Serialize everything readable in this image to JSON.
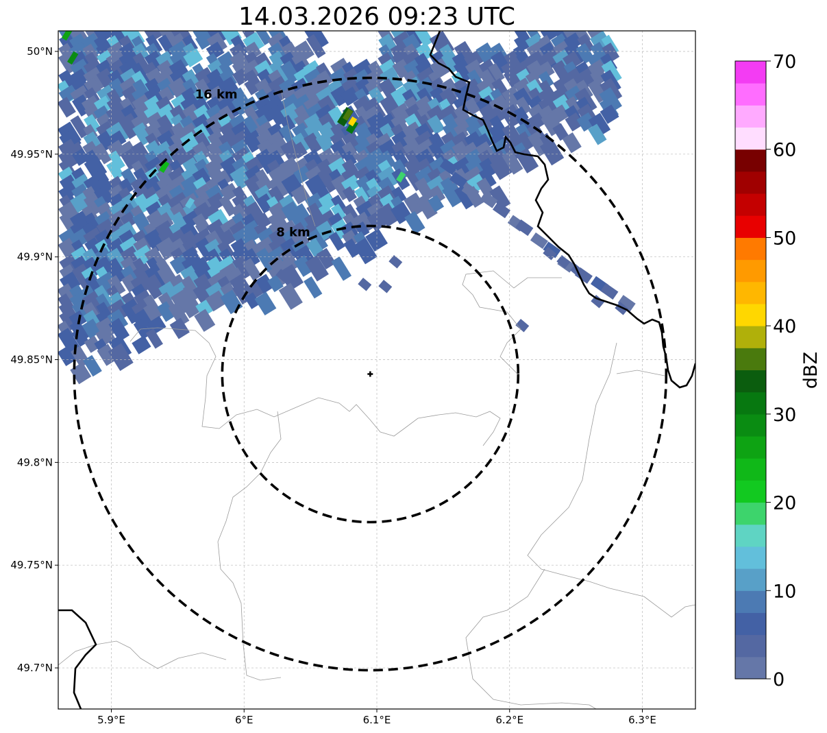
{
  "title": "14.03.2026 09:23 UTC",
  "axes": {
    "lon_range": [
      5.86,
      6.34
    ],
    "lat_range": [
      49.68,
      50.01
    ],
    "x_ticks": [
      {
        "value": 5.9,
        "label": "5.9°E"
      },
      {
        "value": 6.0,
        "label": "6°E"
      },
      {
        "value": 6.1,
        "label": "6.1°E"
      },
      {
        "value": 6.2,
        "label": "6.2°E"
      },
      {
        "value": 6.3,
        "label": "6.3°E"
      }
    ],
    "y_ticks": [
      {
        "value": 50.0,
        "label": "50°N"
      },
      {
        "value": 49.95,
        "label": "49.95°N"
      },
      {
        "value": 49.9,
        "label": "49.9°N"
      },
      {
        "value": 49.85,
        "label": "49.85°N"
      },
      {
        "value": 49.8,
        "label": "49.8°N"
      },
      {
        "value": 49.75,
        "label": "49.75°N"
      },
      {
        "value": 49.7,
        "label": "49.7°N"
      }
    ],
    "grid": true
  },
  "radar": {
    "center": {
      "lon": 6.095,
      "lat": 49.843
    },
    "rings": [
      {
        "radius_km": 8,
        "label": "8 km"
      },
      {
        "radius_km": 16,
        "label": "16 km"
      }
    ]
  },
  "colorbar": {
    "label": "dBZ",
    "min": 0,
    "max": 70,
    "ticks": [
      {
        "value": 0,
        "label": "0"
      },
      {
        "value": 10,
        "label": "10"
      },
      {
        "value": 20,
        "label": "20"
      },
      {
        "value": 30,
        "label": "30"
      },
      {
        "value": 40,
        "label": "40"
      },
      {
        "value": 50,
        "label": "50"
      },
      {
        "value": 60,
        "label": "60"
      },
      {
        "value": 70,
        "label": "70"
      }
    ],
    "colors": [
      "#6577a8",
      "#5468a2",
      "#4361a5",
      "#4c7ab3",
      "#58a0c8",
      "#62bfdb",
      "#5fd4c3",
      "#3dd46c",
      "#12c920",
      "#10b818",
      "#0ea313",
      "#0a8c12",
      "#077810",
      "#0b5d0e",
      "#4a7a0d",
      "#b0b00a",
      "#ffd700",
      "#ffb700",
      "#ff9a00",
      "#ff7a00",
      "#e80000",
      "#c40000",
      "#a00000",
      "#780000",
      "#ffddff",
      "#ffaaff",
      "#ff6dff",
      "#f33cf3"
    ]
  },
  "colors": {
    "border_major": "#000000",
    "border_minor": "#9a9a9a",
    "grid": "#b8b8b8"
  }
}
